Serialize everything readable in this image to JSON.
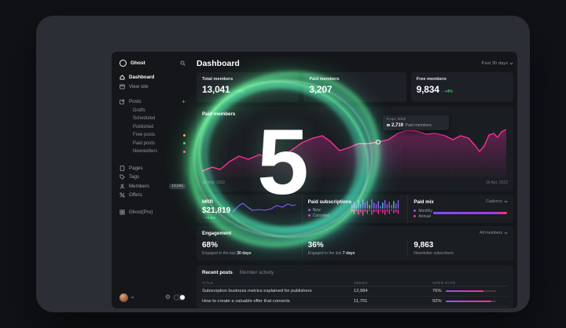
{
  "overlay": {
    "countdown": "5"
  },
  "sidebar": {
    "brand": "Ghost",
    "nav": [
      {
        "label": "Dashboard"
      },
      {
        "label": "View site"
      },
      {
        "label": "Posts"
      }
    ],
    "add_glyph": "+",
    "posts_children": [
      {
        "label": "Drafts",
        "dot": ""
      },
      {
        "label": "Scheduled",
        "dot": ""
      },
      {
        "label": "Published",
        "dot": ""
      },
      {
        "label": "Free posts",
        "dot": "#f2a33c"
      },
      {
        "label": "Paid posts",
        "dot": "#3ecf5e"
      },
      {
        "label": "Newsletters",
        "dot": "#fa3fa0"
      }
    ],
    "nav2": [
      {
        "label": "Pages"
      },
      {
        "label": "Tags"
      },
      {
        "label": "Members",
        "badge": "13,041"
      },
      {
        "label": "Offers"
      }
    ],
    "nav3": [
      {
        "label": "Ghost(Pro)"
      }
    ],
    "gear_glyph": "⚙"
  },
  "header": {
    "title": "Dashboard",
    "range_label": "Past 30 days"
  },
  "stats": [
    {
      "label": "Total members",
      "value": "13,041",
      "delta": "↑ +4%"
    },
    {
      "label": "Paid members",
      "value": "3,207",
      "delta": ""
    },
    {
      "label": "Free members",
      "value": "9,834",
      "delta": "↑ +4%"
    }
  ],
  "paid_members": {
    "title": "Paid members",
    "tooltip": {
      "date": "6 Apr, 2022",
      "value": "2,719",
      "label": "Paid members"
    },
    "axis_start": "19 Mar, 2022",
    "axis_end": "19 Apr, 2022",
    "chart_data": {
      "type": "area",
      "line_color": "#ff2e92",
      "fill_color": "#a8287e",
      "marker_index": 18,
      "points": [
        [
          0,
          63
        ],
        [
          13,
          58
        ],
        [
          23,
          61
        ],
        [
          35,
          51
        ],
        [
          47,
          44
        ],
        [
          59,
          48
        ],
        [
          73,
          42
        ],
        [
          87,
          46
        ],
        [
          101,
          49
        ],
        [
          113,
          37
        ],
        [
          127,
          27
        ],
        [
          141,
          21
        ],
        [
          153,
          18
        ],
        [
          163,
          25
        ],
        [
          175,
          37
        ],
        [
          187,
          33
        ],
        [
          199,
          28
        ],
        [
          211,
          28
        ],
        [
          224,
          26
        ],
        [
          237,
          23
        ],
        [
          249,
          15
        ],
        [
          261,
          11
        ],
        [
          273,
          12
        ],
        [
          285,
          16
        ],
        [
          297,
          15
        ],
        [
          309,
          18
        ],
        [
          319,
          23
        ],
        [
          329,
          18
        ],
        [
          339,
          21
        ],
        [
          347,
          30
        ],
        [
          353,
          38
        ],
        [
          359,
          31
        ],
        [
          365,
          17
        ],
        [
          371,
          15
        ],
        [
          376,
          20
        ],
        [
          381,
          13
        ],
        [
          387,
          10
        ]
      ]
    }
  },
  "mrr": {
    "label": "MRR",
    "value": "$21,819",
    "delta": "↑ +3.8%",
    "spark_color": "#7b5cff",
    "spark_points": [
      [
        0,
        14
      ],
      [
        8,
        6
      ],
      [
        13,
        3
      ],
      [
        19,
        8
      ],
      [
        25,
        12
      ],
      [
        33,
        11
      ],
      [
        41,
        12
      ],
      [
        49,
        10
      ],
      [
        56,
        6
      ],
      [
        63,
        8
      ],
      [
        70,
        4
      ],
      [
        76,
        6
      ],
      [
        80,
        5
      ]
    ]
  },
  "paid_subscriptions": {
    "title": "Paid subscriptions",
    "legend": [
      {
        "label": "New",
        "color": "#8a5cf6"
      },
      {
        "label": "Canceled",
        "color": "#fb2f8f"
      }
    ],
    "chart_data": {
      "type": "bar",
      "up_color": "#8a5cf6",
      "up_alt_color": "#3ad6c6",
      "down_color": "#fb2f8f",
      "ups": [
        6,
        9,
        4,
        11,
        6,
        12,
        8,
        10,
        5,
        12,
        8,
        6,
        10,
        4,
        8,
        11,
        6,
        9,
        5,
        10,
        7,
        11
      ],
      "downs": [
        3,
        6,
        2,
        7,
        4,
        8,
        3,
        6,
        2,
        7,
        4,
        3,
        6,
        2,
        5,
        7,
        3,
        6,
        2,
        5,
        4,
        6
      ],
      "teal_indexes": [
        3,
        8,
        14,
        19
      ]
    }
  },
  "paid_mix": {
    "title": "Paid mix",
    "dropdown": "Cadence",
    "legend": [
      {
        "label": "Monthly",
        "color": "#8a5cf6"
      },
      {
        "label": "Annual",
        "color": "#fb2f8f"
      }
    ],
    "monthly_pct": 86,
    "annual_pct": 14
  },
  "engagement": {
    "title": "Engagement",
    "dropdown": "All members",
    "stats": [
      {
        "value": "68%",
        "label_prefix": "Engaged in the last ",
        "label_em": "30 days"
      },
      {
        "value": "36%",
        "label_prefix": "Engaged in the last ",
        "label_em": "7 days"
      },
      {
        "value": "9,863",
        "label_prefix": "Newsletter subscribers",
        "label_em": ""
      }
    ]
  },
  "posts_table": {
    "tabs": [
      {
        "label": "Recent posts"
      },
      {
        "label": "Member activity"
      }
    ],
    "columns": [
      "TITLE",
      "SENDS",
      "OPEN RATE"
    ],
    "rows": [
      {
        "title": "Subscription business metrics explained for publishers",
        "sends": "12,984",
        "open_rate": "76%",
        "open_rate_pct": 76
      },
      {
        "title": "How to create a valuable offer that converts",
        "sends": "11,701",
        "open_rate": "92%",
        "open_rate_pct": 92
      }
    ]
  }
}
